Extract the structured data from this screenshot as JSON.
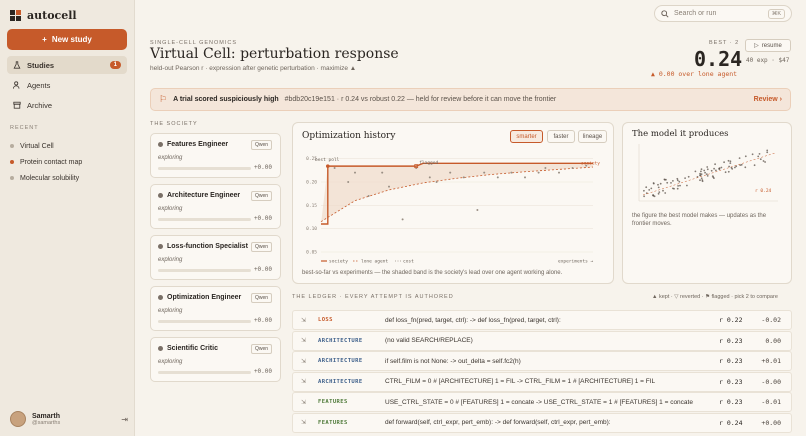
{
  "app": {
    "name": "autocell"
  },
  "sidebar": {
    "new_study_label": "New study",
    "nav": [
      {
        "label": "Studies",
        "count": "1",
        "icon": "flask-icon"
      },
      {
        "label": "Agents",
        "icon": "people-icon"
      },
      {
        "label": "Archive",
        "icon": "archive-icon"
      }
    ],
    "recent_heading": "RECENT",
    "recent": [
      {
        "label": "Virtual Cell",
        "active": false
      },
      {
        "label": "Protein contact map",
        "active": true
      },
      {
        "label": "Molecular solubility",
        "active": false
      }
    ],
    "user": {
      "name": "Samarth",
      "handle": "@samarths"
    }
  },
  "search": {
    "placeholder": "Search or run",
    "shortcut": "⌘K"
  },
  "study": {
    "eyebrow": "SINGLE-CELL GENOMICS",
    "title": "Virtual Cell: perturbation response",
    "subtitle": "held-out Pearson r · expression after genetic perturbation · maximize ▲",
    "best_label": "BEST · 2",
    "best_value": "0.24",
    "resume_label": "resume",
    "meta": "40 exp · $47",
    "gain": "▲ 0.00 over lone agent"
  },
  "alert": {
    "title": "A trial scored suspiciously high",
    "text": "#bdb20c19e151 · r 0.24 vs robust 0.22 — held for review before it can move the frontier",
    "action": "Review ›"
  },
  "society": {
    "heading": "THE SOCIETY",
    "agents": [
      {
        "name": "Features Engineer",
        "model": "Qwen",
        "status": "exploring",
        "delta": "+0.00",
        "progress": 0.0
      },
      {
        "name": "Architecture Engineer",
        "model": "Qwen",
        "status": "exploring",
        "delta": "+0.00",
        "progress": 0.0
      },
      {
        "name": "Loss-function Specialist",
        "model": "Qwen",
        "status": "exploring",
        "delta": "+0.00",
        "progress": 0.0
      },
      {
        "name": "Optimization Engineer",
        "model": "Qwen",
        "status": "exploring",
        "delta": "+0.00",
        "progress": 0.0
      },
      {
        "name": "Scientific Critic",
        "model": "Qwen",
        "status": "exploring",
        "delta": "+0.00",
        "progress": 0.0
      }
    ]
  },
  "optimization": {
    "title": "Optimization history",
    "tabs": [
      "smarter",
      "faster",
      "lineage"
    ],
    "active_tab": "smarter",
    "caption": "best-so-far vs experiments — the shaded band is the society's lead over one agent working alone.",
    "labels": {
      "best": "best poll",
      "flagged": "flagged",
      "society": "society"
    },
    "legend": [
      "society",
      "lone agent",
      "cost"
    ],
    "x_label": "experiments →"
  },
  "chart_data": {
    "type": "line",
    "title": "Optimization history",
    "xlabel": "experiments",
    "ylabel": "",
    "ylim": [
      0.05,
      0.26
    ],
    "yticks": [
      "0.25",
      "0.20",
      "0.15",
      "0.10",
      "0.05"
    ],
    "series": [
      {
        "name": "society",
        "x": [
          0,
          1,
          1,
          14,
          15,
          40
        ],
        "y": [
          0.11,
          0.11,
          0.234,
          0.234,
          0.24,
          0.24
        ]
      },
      {
        "name": "lone agent",
        "x": [
          0,
          5,
          10,
          15,
          20,
          25,
          30,
          35,
          40
        ],
        "y": [
          0.115,
          0.16,
          0.183,
          0.198,
          0.208,
          0.216,
          0.222,
          0.227,
          0.232
        ]
      }
    ],
    "scatter": {
      "name": "experiments",
      "x": [
        2,
        4,
        5,
        7,
        9,
        10,
        12,
        14,
        16,
        17,
        19,
        21,
        23,
        24,
        26,
        28,
        30,
        32,
        33,
        35,
        37,
        39
      ],
      "y": [
        0.23,
        0.2,
        0.22,
        0.17,
        0.22,
        0.19,
        0.12,
        0.23,
        0.21,
        0.2,
        0.22,
        0.21,
        0.14,
        0.22,
        0.21,
        0.22,
        0.21,
        0.22,
        0.23,
        0.22,
        0.23,
        0.235
      ]
    },
    "legend_position": "bottom-left",
    "grid": true
  },
  "model": {
    "title": "The model it produces",
    "r_label": "r 0.24",
    "caption": "the figure the best model makes — updates as the frontier moves.",
    "scatter_trend": "positive"
  },
  "ledger": {
    "heading": "THE LEDGER · EVERY ATTEMPT IS AUTHORED",
    "legend": "▲ kept · ▽ reverted · ⚑ flagged · pick 2 to compare",
    "rows": [
      {
        "kind": "LOSS",
        "color": "#c65a2a",
        "diff": "def loss_fn(pred, target, ctrl): -> def loss_fn(pred, target, ctrl):",
        "r": "r 0.22",
        "delta": "-0.02",
        "r_color": "#2b2622"
      },
      {
        "kind": "ARCHITECTURE",
        "color": "#3d5f8a",
        "diff": "(no valid SEARCH/REPLACE)",
        "r": "r 0.23",
        "delta": "0.00",
        "r_color": "#2b2622"
      },
      {
        "kind": "ARCHITECTURE",
        "color": "#3d5f8a",
        "diff": "if self.film is not None: -> out_delta = self.fc2(h)",
        "r": "r 0.23",
        "delta": "+0.01",
        "r_color": "#2b2622"
      },
      {
        "kind": "ARCHITECTURE",
        "color": "#3d5f8a",
        "diff": "CTRL_FILM = 0 # [ARCHITECTURE] 1 = FIL -> CTRL_FILM = 1 # [ARCHITECTURE] 1 = FIL",
        "r": "r 0.23",
        "delta": "-0.00",
        "r_color": "#2b2622"
      },
      {
        "kind": "FEATURES",
        "color": "#4f7a3a",
        "diff": "USE_CTRL_STATE = 0 # [FEATURES] 1 = concate -> USE_CTRL_STATE = 1 # [FEATURES] 1 = concate",
        "r": "r 0.23",
        "delta": "-0.01",
        "r_color": "#2b2622"
      },
      {
        "kind": "FEATURES",
        "color": "#4f7a3a",
        "diff": "def forward(self, ctrl_expr, pert_emb): -> def forward(self, ctrl_expr, pert_emb):",
        "r": "r 0.24",
        "delta": "+0.00",
        "r_color": "#2b2622"
      }
    ]
  }
}
